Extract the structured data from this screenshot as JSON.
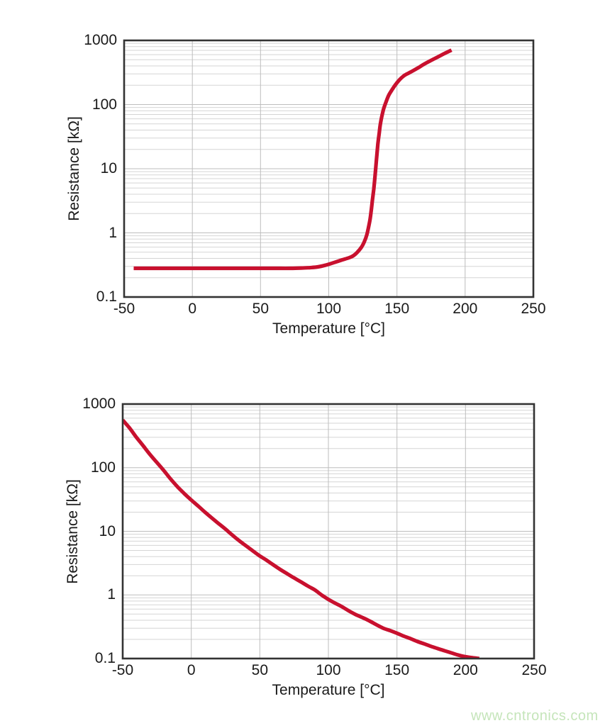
{
  "watermark": {
    "text": "www.cntronics.com",
    "color": "#c5e5ba"
  },
  "palette": {
    "curve": "#c8102e",
    "grid_minor": "#d5d5d5",
    "grid_major": "#bdbdbd",
    "frame": "#333333",
    "text": "#1a1a1a",
    "background": "#ffffff"
  },
  "chart_data": [
    {
      "type": "line",
      "title": "",
      "xlabel": "Temperature [°C]",
      "ylabel": "Resistance [kΩ]",
      "x_axis": {
        "min": -50,
        "max": 250,
        "scale": "linear",
        "ticks": [
          -50,
          0,
          50,
          100,
          150,
          200,
          250
        ]
      },
      "y_axis": {
        "min": 0.1,
        "max": 1000,
        "scale": "log",
        "ticks": [
          "0.1",
          "1",
          "10",
          "100",
          "1000"
        ]
      },
      "grid": "major-plus-log-minor",
      "legend": "none",
      "series": [
        {
          "color": "#c8102e",
          "points": [
            [
              -43,
              0.28
            ],
            [
              -30,
              0.28
            ],
            [
              -15,
              0.28
            ],
            [
              0,
              0.28
            ],
            [
              15,
              0.28
            ],
            [
              30,
              0.28
            ],
            [
              45,
              0.28
            ],
            [
              60,
              0.28
            ],
            [
              72,
              0.28
            ],
            [
              80,
              0.283
            ],
            [
              86,
              0.287
            ],
            [
              92,
              0.295
            ],
            [
              98,
              0.315
            ],
            [
              104,
              0.345
            ],
            [
              110,
              0.38
            ],
            [
              115,
              0.41
            ],
            [
              118,
              0.44
            ],
            [
              121,
              0.5
            ],
            [
              124,
              0.6
            ],
            [
              126,
              0.72
            ],
            [
              128,
              0.95
            ],
            [
              130,
              1.5
            ],
            [
              131,
              2.1
            ],
            [
              132,
              3.2
            ],
            [
              133,
              4.8
            ],
            [
              134,
              8
            ],
            [
              135,
              14
            ],
            [
              136,
              24
            ],
            [
              137,
              36
            ],
            [
              138,
              52
            ],
            [
              140,
              82
            ],
            [
              142,
              110
            ],
            [
              144,
              140
            ],
            [
              146,
              165
            ],
            [
              149,
              205
            ],
            [
              152,
              245
            ],
            [
              155,
              280
            ],
            [
              158,
              305
            ],
            [
              161,
              330
            ],
            [
              165,
              368
            ],
            [
              170,
              428
            ],
            [
              175,
              488
            ],
            [
              180,
              553
            ],
            [
              185,
              628
            ],
            [
              190,
              705
            ]
          ]
        }
      ]
    },
    {
      "type": "line",
      "title": "",
      "xlabel": "Temperature [°C]",
      "ylabel": "Resistance [kΩ]",
      "x_axis": {
        "min": -50,
        "max": 250,
        "scale": "linear",
        "ticks": [
          -50,
          0,
          50,
          100,
          150,
          200,
          250
        ]
      },
      "y_axis": {
        "min": 0.1,
        "max": 1000,
        "scale": "log",
        "ticks": [
          "0.1",
          "1",
          "10",
          "100",
          "1000"
        ]
      },
      "grid": "major-plus-log-minor",
      "legend": "none",
      "series": [
        {
          "color": "#c8102e",
          "points": [
            [
              -50,
              560
            ],
            [
              -45,
              420
            ],
            [
              -40,
              300
            ],
            [
              -35,
              220
            ],
            [
              -30,
              160
            ],
            [
              -25,
              120
            ],
            [
              -20,
              90
            ],
            [
              -15,
              66
            ],
            [
              -10,
              50
            ],
            [
              -5,
              39
            ],
            [
              0,
              31
            ],
            [
              5,
              25
            ],
            [
              10,
              20
            ],
            [
              15,
              16.2
            ],
            [
              20,
              13.2
            ],
            [
              25,
              10.8
            ],
            [
              30,
              8.7
            ],
            [
              35,
              7.1
            ],
            [
              40,
              5.9
            ],
            [
              45,
              4.9
            ],
            [
              50,
              4.1
            ],
            [
              55,
              3.5
            ],
            [
              60,
              2.95
            ],
            [
              65,
              2.5
            ],
            [
              70,
              2.15
            ],
            [
              75,
              1.85
            ],
            [
              80,
              1.6
            ],
            [
              85,
              1.38
            ],
            [
              90,
              1.2
            ],
            [
              95,
              1.0
            ],
            [
              100,
              0.85
            ],
            [
              105,
              0.74
            ],
            [
              110,
              0.65
            ],
            [
              115,
              0.56
            ],
            [
              120,
              0.49
            ],
            [
              125,
              0.44
            ],
            [
              130,
              0.39
            ],
            [
              135,
              0.34
            ],
            [
              140,
              0.3
            ],
            [
              145,
              0.275
            ],
            [
              150,
              0.25
            ],
            [
              155,
              0.225
            ],
            [
              160,
              0.205
            ],
            [
              165,
              0.185
            ],
            [
              170,
              0.17
            ],
            [
              175,
              0.155
            ],
            [
              180,
              0.143
            ],
            [
              185,
              0.132
            ],
            [
              190,
              0.122
            ],
            [
              195,
              0.113
            ],
            [
              200,
              0.107
            ],
            [
              205,
              0.103
            ],
            [
              210,
              0.1
            ]
          ]
        }
      ]
    }
  ]
}
